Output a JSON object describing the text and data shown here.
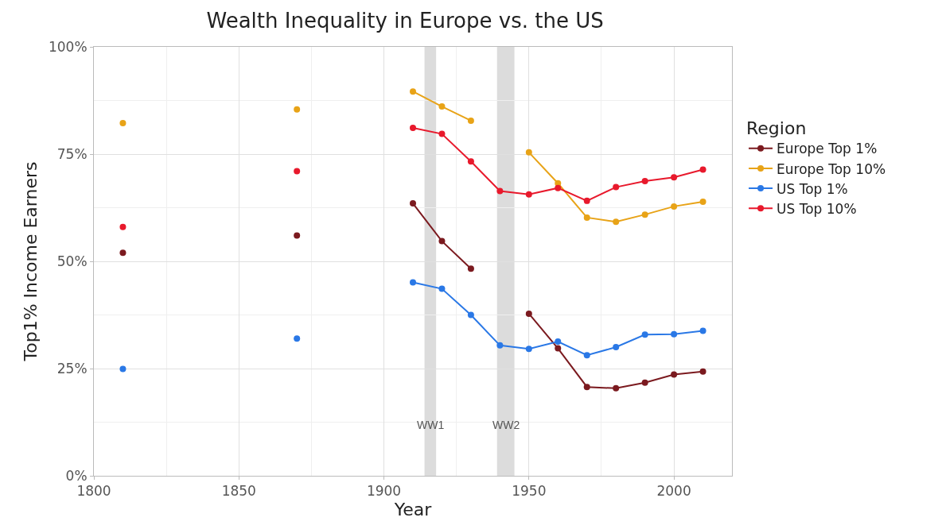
{
  "chart_data": {
    "type": "line",
    "title": "Wealth Inequality in Europe vs. the US",
    "xlabel": "Year",
    "ylabel": "Top1% Income Earners",
    "legend_title": "Region",
    "x": [
      1810,
      1840,
      1870,
      1890,
      1910,
      1920,
      1930,
      1940,
      1950,
      1960,
      1970,
      1980,
      1990,
      2000,
      2010
    ],
    "series": [
      {
        "name": "Europe Top 1%",
        "color": "#7b1a1f",
        "values": [
          52,
          null,
          56,
          null,
          63.5,
          54.7,
          48.3,
          null,
          37.8,
          29.7,
          20.7,
          20.4,
          21.7,
          23.6,
          24.3
        ]
      },
      {
        "name": "Europe Top 10%",
        "color": "#e8a317",
        "values": [
          82.2,
          null,
          85.4,
          null,
          89.6,
          86.1,
          82.8,
          null,
          75.4,
          68.2,
          60.2,
          59.2,
          60.9,
          62.8,
          63.9
        ]
      },
      {
        "name": "US Top 1%",
        "color": "#2a78e6",
        "values": [
          24.9,
          null,
          32,
          null,
          45.1,
          43.6,
          37.5,
          30.4,
          29.6,
          31.3,
          28.1,
          30,
          32.9,
          33,
          33.8
        ]
      },
      {
        "name": "US Top 10%",
        "color": "#e8192c",
        "values": [
          58,
          null,
          71,
          null,
          81.1,
          79.7,
          73.3,
          66.4,
          65.6,
          67.1,
          64.1,
          67.3,
          68.7,
          69.6,
          71.4
        ]
      }
    ],
    "bands": [
      {
        "axis": "x",
        "from": 1914,
        "to": 1918,
        "label": "WW1",
        "color": "#dcdcdc"
      },
      {
        "axis": "x",
        "from": 1939,
        "to": 1945,
        "label": "WW2",
        "color": "#dcdcdc"
      }
    ],
    "xlim": [
      1800,
      2020
    ],
    "xticks": [
      1800,
      1850,
      1900,
      1950,
      2000
    ],
    "ylim": [
      0,
      100
    ],
    "yticks": [
      {
        "value": 0,
        "label": "0%"
      },
      {
        "value": 25,
        "label": "25%"
      },
      {
        "value": 50,
        "label": "50%"
      },
      {
        "value": 75,
        "label": "75%"
      },
      {
        "value": 100,
        "label": "100%"
      }
    ],
    "grid": true,
    "legend": "right",
    "marker": "circle",
    "line_style": "solid"
  }
}
